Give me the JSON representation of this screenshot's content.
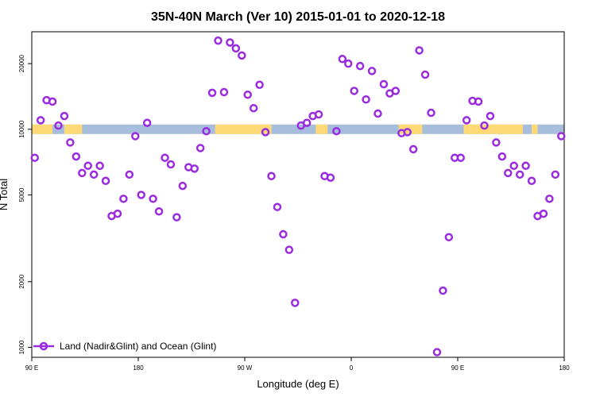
{
  "chart_data": {
    "type": "scatter",
    "title": "35N-40N March (Ver 10)   2015-01-01 to 2020-12-18",
    "xlabel": "Longitude (deg E)",
    "ylabel": "N Total",
    "xlim": [
      90,
      270
    ],
    "ylim": [
      900,
      28000
    ],
    "y_scale": "log",
    "x_ticks": [
      {
        "value": 90,
        "label": "90 E"
      },
      {
        "value": 126,
        "label": "180"
      },
      {
        "value": 162,
        "label": "90 W"
      },
      {
        "value": 198,
        "label": "0"
      },
      {
        "value": 234,
        "label": "90 E"
      },
      {
        "value": 270,
        "label": "180"
      }
    ],
    "y_ticks": [
      {
        "value": 1000,
        "label": "1000"
      },
      {
        "value": 2000,
        "label": "2000"
      },
      {
        "value": 5000,
        "label": "5000"
      },
      {
        "value": 10000,
        "label": "10000"
      },
      {
        "value": 20000,
        "label": "20000"
      }
    ],
    "grid": false,
    "legend": {
      "position": "bottom-left"
    },
    "series": [
      {
        "name": "Land (Nadir&Glint) and Ocean (Glint)",
        "color": "#9a2be0",
        "marker": "open-circle",
        "x": [
          91,
          93,
          95,
          97,
          99,
          101,
          103,
          105,
          107,
          109,
          111,
          113,
          115,
          117,
          119,
          121,
          123,
          125,
          127,
          129,
          131,
          133,
          135,
          137,
          139,
          141,
          143,
          145,
          147,
          149,
          151,
          153,
          155,
          157,
          159,
          161,
          163,
          165,
          167,
          169,
          171,
          173,
          175,
          177,
          179,
          181,
          183,
          185,
          187,
          189,
          191,
          193,
          195,
          197,
          199,
          201,
          203,
          205,
          207,
          209,
          211,
          213,
          215,
          217,
          219,
          221,
          223,
          225,
          227,
          229,
          231,
          233,
          235,
          237,
          239,
          241,
          243,
          245,
          247,
          249,
          251,
          253,
          255,
          257,
          259,
          261,
          263,
          265,
          267,
          269
        ],
        "y": [
          7400,
          11000,
          13600,
          13400,
          10400,
          11500,
          8700,
          7500,
          6300,
          6800,
          6200,
          6800,
          5800,
          4000,
          4100,
          4800,
          6200,
          9300,
          5000,
          10700,
          4800,
          4200,
          7400,
          6900,
          3950,
          5500,
          6700,
          6600,
          8200,
          9800,
          14700,
          25500,
          14800,
          25000,
          23500,
          21800,
          14400,
          12500,
          16000,
          9700,
          6100,
          4400,
          3300,
          2800,
          1600,
          10400,
          10700,
          11500,
          11700,
          6100,
          6000,
          9800,
          21000,
          20000,
          15000,
          19500,
          13700,
          18500,
          11800,
          16100,
          14600,
          15000,
          9600,
          9700,
          8100,
          23000,
          17800,
          11900,
          950,
          1820,
          3200,
          7400,
          7400,
          11000,
          13500,
          13400,
          10400,
          11500,
          8700,
          7500,
          6300,
          6800,
          6200,
          6800,
          5800,
          4000,
          4100,
          4800,
          6200,
          9300
        ]
      }
    ],
    "surface_band": {
      "value": 10000,
      "ocean_color": "#a6bedb",
      "land_color": "#fed976",
      "land_ranges": [
        [
          90,
          97
        ],
        [
          101,
          107
        ],
        [
          152,
          171
        ],
        [
          186,
          190
        ],
        [
          214,
          222
        ],
        [
          236,
          256
        ],
        [
          259,
          261
        ]
      ]
    }
  }
}
